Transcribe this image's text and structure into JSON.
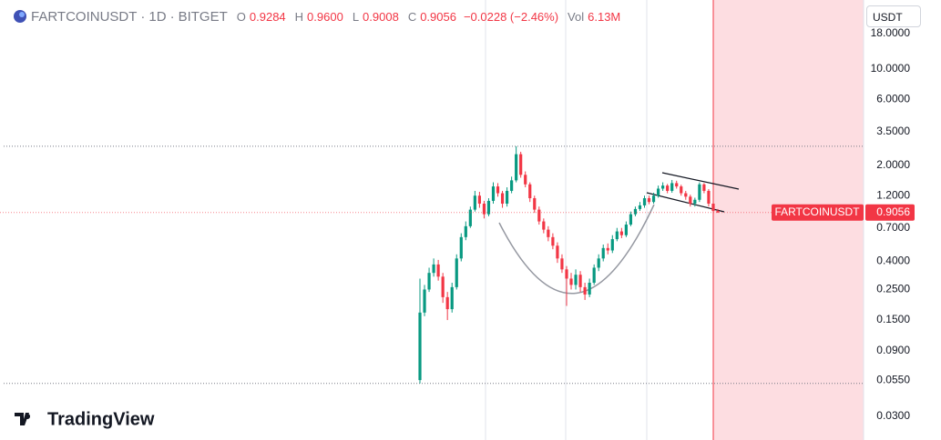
{
  "header": {
    "symbol": "FARTCOINUSDT",
    "interval": "1D",
    "exchange": "BITGET",
    "o_label": "O",
    "o_value": "0.9284",
    "h_label": "H",
    "h_value": "0.9600",
    "l_label": "L",
    "l_value": "0.9008",
    "c_label": "C",
    "c_value": "0.9056",
    "change": "−0.0228 (−2.46%)",
    "vol_label": "Vol",
    "vol_value": "6.13M"
  },
  "currency_button": "USDT",
  "logo": "TradingView",
  "chart_data": {
    "type": "candlestick",
    "log_scale": true,
    "grid": false,
    "up_color": "#089981",
    "down_color": "#f23645",
    "open": [
      0.055,
      0.17,
      0.25,
      0.33,
      0.38,
      0.31,
      0.22,
      0.18,
      0.26,
      0.42,
      0.6,
      0.72,
      0.95,
      1.2,
      1.05,
      0.88,
      1.1,
      1.4,
      1.25,
      1.05,
      1.3,
      1.55,
      2.4,
      1.7,
      1.45,
      1.15,
      0.95,
      0.78,
      0.68,
      0.6,
      0.52,
      0.42,
      0.35,
      0.3,
      0.27,
      0.32,
      0.26,
      0.23,
      0.28,
      0.36,
      0.42,
      0.5,
      0.48,
      0.58,
      0.66,
      0.62,
      0.74,
      0.88,
      0.96,
      1.02,
      1.15,
      1.08,
      1.2,
      1.35,
      1.42,
      1.3,
      1.48,
      1.4,
      1.25,
      1.18,
      1.05,
      1.12,
      1.45,
      1.3,
      1.05,
      0.9284
    ],
    "high": [
      0.3,
      0.27,
      0.36,
      0.42,
      0.41,
      0.33,
      0.24,
      0.28,
      0.45,
      0.64,
      0.78,
      1.0,
      1.3,
      1.28,
      1.1,
      1.15,
      1.5,
      1.48,
      1.3,
      1.38,
      1.65,
      2.74,
      2.5,
      1.8,
      1.5,
      1.2,
      1.0,
      0.82,
      0.72,
      0.64,
      0.55,
      0.45,
      0.37,
      0.33,
      0.35,
      0.34,
      0.28,
      0.3,
      0.38,
      0.45,
      0.53,
      0.54,
      0.62,
      0.7,
      0.7,
      0.78,
      0.92,
      1.0,
      1.08,
      1.2,
      1.2,
      1.26,
      1.42,
      1.5,
      1.46,
      1.56,
      1.54,
      1.44,
      1.3,
      1.22,
      1.16,
      1.5,
      1.48,
      1.34,
      1.08,
      0.96
    ],
    "low": [
      0.052,
      0.16,
      0.24,
      0.31,
      0.29,
      0.2,
      0.15,
      0.17,
      0.25,
      0.4,
      0.57,
      0.7,
      0.92,
      0.98,
      0.82,
      0.85,
      1.05,
      1.18,
      0.98,
      1.0,
      1.25,
      1.5,
      1.62,
      1.38,
      1.08,
      0.9,
      0.74,
      0.64,
      0.56,
      0.49,
      0.39,
      0.33,
      0.19,
      0.25,
      0.25,
      0.24,
      0.21,
      0.22,
      0.27,
      0.34,
      0.4,
      0.45,
      0.46,
      0.56,
      0.59,
      0.6,
      0.72,
      0.85,
      0.93,
      0.98,
      1.04,
      1.05,
      1.16,
      1.3,
      1.25,
      1.26,
      1.35,
      1.2,
      1.12,
      1.0,
      1.0,
      1.08,
      1.25,
      1.0,
      0.8,
      0.9008
    ],
    "close": [
      0.17,
      0.25,
      0.33,
      0.38,
      0.31,
      0.22,
      0.18,
      0.26,
      0.42,
      0.6,
      0.72,
      0.95,
      1.2,
      1.05,
      0.88,
      1.1,
      1.4,
      1.25,
      1.05,
      1.3,
      1.55,
      2.4,
      1.7,
      1.45,
      1.15,
      0.95,
      0.78,
      0.68,
      0.6,
      0.52,
      0.42,
      0.35,
      0.3,
      0.27,
      0.32,
      0.26,
      0.23,
      0.28,
      0.36,
      0.42,
      0.5,
      0.48,
      0.58,
      0.66,
      0.62,
      0.74,
      0.88,
      0.96,
      1.02,
      1.15,
      1.08,
      1.2,
      1.35,
      1.42,
      1.3,
      1.48,
      1.4,
      1.25,
      1.18,
      1.05,
      1.12,
      1.45,
      1.3,
      1.05,
      0.9284,
      0.9056
    ],
    "ylim": [
      0.0202,
      31.6
    ],
    "yticks": [
      {
        "value": 18,
        "label": "18.0000"
      },
      {
        "value": 10,
        "label": "10.0000"
      },
      {
        "value": 6,
        "label": "6.0000"
      },
      {
        "value": 3.5,
        "label": "3.5000"
      },
      {
        "value": 2,
        "label": "2.0000"
      },
      {
        "value": 1.2,
        "label": "1.2000"
      },
      {
        "value": 0.7,
        "label": "0.7000"
      },
      {
        "value": 0.4,
        "label": "0.4000"
      },
      {
        "value": 0.25,
        "label": "0.2500"
      },
      {
        "value": 0.15,
        "label": "0.1500"
      },
      {
        "value": 0.09,
        "label": "0.0900"
      },
      {
        "value": 0.055,
        "label": "0.0550"
      },
      {
        "value": 0.03,
        "label": "0.0300"
      }
    ],
    "hlines": [
      2.74,
      0.052
    ],
    "price_tag": {
      "name": "FARTCOINUSDT",
      "value": 0.9056,
      "label": "0.9056"
    }
  }
}
